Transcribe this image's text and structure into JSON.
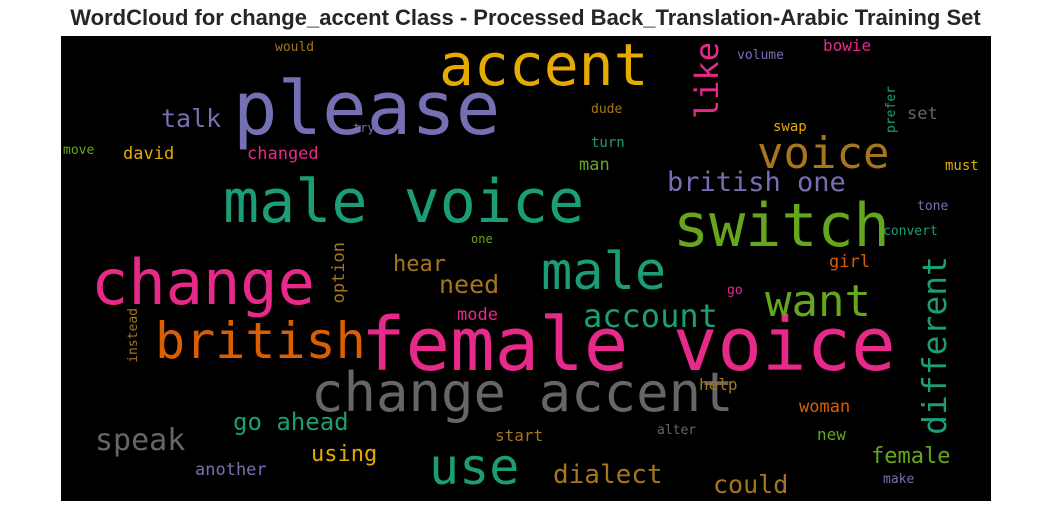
{
  "title": "WordCloud for change_accent Class - Processed Back_Translation-Arabic Training Set",
  "words": [
    {
      "id": "female-voice",
      "text": "female voice",
      "color": "#e7298a"
    },
    {
      "id": "please",
      "text": "please",
      "color": "#7570b3"
    },
    {
      "id": "male-voice",
      "text": "male voice",
      "color": "#1b9e77"
    },
    {
      "id": "change",
      "text": "change",
      "color": "#e7298a"
    },
    {
      "id": "change-accent",
      "text": "change accent",
      "color": "#666666"
    },
    {
      "id": "accent",
      "text": "accent",
      "color": "#e6ab02"
    },
    {
      "id": "switch",
      "text": "switch",
      "color": "#66a61e"
    },
    {
      "id": "british",
      "text": "british",
      "color": "#d95f02"
    },
    {
      "id": "male",
      "text": "male",
      "color": "#1b9e77"
    },
    {
      "id": "use",
      "text": "use",
      "color": "#1b9e77"
    },
    {
      "id": "voice",
      "text": "voice",
      "color": "#a6761d"
    },
    {
      "id": "want",
      "text": "want",
      "color": "#66a61e"
    },
    {
      "id": "british-one",
      "text": "british one",
      "color": "#7570b3"
    },
    {
      "id": "account",
      "text": "account",
      "color": "#1b9e77"
    },
    {
      "id": "different",
      "text": "different",
      "color": "#1b9e77"
    },
    {
      "id": "like",
      "text": "like",
      "color": "#e7298a"
    },
    {
      "id": "speak",
      "text": "speak",
      "color": "#666666"
    },
    {
      "id": "dialect",
      "text": "dialect",
      "color": "#a6761d"
    },
    {
      "id": "could",
      "text": "could",
      "color": "#a6761d"
    },
    {
      "id": "talk",
      "text": "talk",
      "color": "#7570b3"
    },
    {
      "id": "need",
      "text": "need",
      "color": "#a6761d"
    },
    {
      "id": "go-ahead",
      "text": "go ahead",
      "color": "#1b9e77"
    },
    {
      "id": "female",
      "text": "female",
      "color": "#66a61e"
    },
    {
      "id": "hear",
      "text": "hear",
      "color": "#a6761d"
    },
    {
      "id": "using",
      "text": "using",
      "color": "#e6ab02"
    },
    {
      "id": "another",
      "text": "another",
      "color": "#7570b3"
    },
    {
      "id": "david",
      "text": "david",
      "color": "#e6ab02"
    },
    {
      "id": "changed",
      "text": "changed",
      "color": "#e7298a"
    },
    {
      "id": "option",
      "text": "option",
      "color": "#a6761d"
    },
    {
      "id": "mode",
      "text": "mode",
      "color": "#e7298a"
    },
    {
      "id": "man",
      "text": "man",
      "color": "#66a61e"
    },
    {
      "id": "set",
      "text": "set",
      "color": "#666666"
    },
    {
      "id": "girl",
      "text": "girl",
      "color": "#d95f02"
    },
    {
      "id": "woman",
      "text": "woman",
      "color": "#d95f02"
    },
    {
      "id": "help",
      "text": "help",
      "color": "#a6761d"
    },
    {
      "id": "new",
      "text": "new",
      "color": "#66a61e"
    },
    {
      "id": "start",
      "text": "start",
      "color": "#a6761d"
    },
    {
      "id": "bowie",
      "text": "bowie",
      "color": "#e7298a"
    },
    {
      "id": "must",
      "text": "must",
      "color": "#e6ab02"
    },
    {
      "id": "swap",
      "text": "swap",
      "color": "#e6ab02"
    },
    {
      "id": "turn",
      "text": "turn",
      "color": "#1b9e77"
    },
    {
      "id": "dude",
      "text": "dude",
      "color": "#a6761d"
    },
    {
      "id": "would",
      "text": "would",
      "color": "#a6761d"
    },
    {
      "id": "volume",
      "text": "volume",
      "color": "#7570b3"
    },
    {
      "id": "prefer",
      "text": "prefer",
      "color": "#1b9e77"
    },
    {
      "id": "try",
      "text": "try",
      "color": "#7570b3"
    },
    {
      "id": "move",
      "text": "move",
      "color": "#66a61e"
    },
    {
      "id": "tone",
      "text": "tone",
      "color": "#7570b3"
    },
    {
      "id": "convert",
      "text": "convert",
      "color": "#1b9e77"
    },
    {
      "id": "one",
      "text": "one",
      "color": "#66a61e"
    },
    {
      "id": "go",
      "text": "go",
      "color": "#e7298a"
    },
    {
      "id": "instead",
      "text": "instead",
      "color": "#a6761d"
    },
    {
      "id": "alter",
      "text": "alter",
      "color": "#666666"
    },
    {
      "id": "make",
      "text": "make",
      "color": "#7570b3"
    }
  ]
}
